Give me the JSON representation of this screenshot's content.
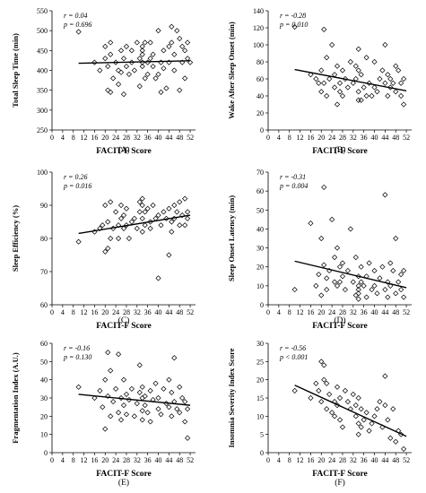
{
  "chart_data": [
    {
      "type": "scatter",
      "panel_label": "(A)",
      "xlabel": "FACIT-F Score",
      "ylabel": "Total Sleep Time (min)",
      "stats": [
        "r = 0.04",
        "p = 0.696"
      ],
      "xlim": [
        0,
        54
      ],
      "ylim": [
        250,
        550
      ],
      "x_ticks": [
        "0",
        "4",
        "8",
        "12",
        "16",
        "20",
        "24",
        "28",
        "32",
        "36",
        "40",
        "44",
        "48",
        "52"
      ],
      "y_ticks": [
        "250",
        "300",
        "350",
        "400",
        "450",
        "500",
        "550"
      ],
      "marker": "open-diamond",
      "trend_line": {
        "x": [
          10,
          52
        ],
        "y": [
          418,
          424
        ]
      },
      "x": [
        10,
        16,
        18,
        20,
        20,
        21,
        21,
        22,
        22,
        22,
        23,
        24,
        25,
        25,
        26,
        26,
        27,
        27,
        28,
        28,
        29,
        30,
        30,
        31,
        32,
        33,
        33,
        34,
        34,
        34,
        34,
        34,
        35,
        35,
        36,
        36,
        37,
        37,
        38,
        38,
        39,
        40,
        40,
        41,
        41,
        42,
        42,
        43,
        44,
        44,
        45,
        45,
        46,
        46,
        47,
        48,
        48,
        49,
        49,
        50,
        50,
        51,
        51,
        52
      ],
      "y": [
        497,
        420,
        400,
        460,
        430,
        410,
        350,
        470,
        440,
        345,
        380,
        420,
        400,
        365,
        450,
        395,
        430,
        340,
        410,
        460,
        390,
        420,
        450,
        400,
        470,
        430,
        360,
        440,
        460,
        450,
        420,
        410,
        470,
        380,
        390,
        420,
        430,
        470,
        440,
        410,
        380,
        500,
        390,
        420,
        345,
        450,
        405,
        355,
        460,
        420,
        470,
        510,
        440,
        400,
        500,
        350,
        480,
        460,
        420,
        450,
        380,
        430,
        470,
        420
      ]
    },
    {
      "type": "scatter",
      "panel_label": "(B)",
      "xlabel": "FACIT-F Score",
      "ylabel": "Wake After Sleep Onset (min)",
      "stats": [
        "r = -0.28",
        "p = 0.010"
      ],
      "xlim": [
        0,
        54
      ],
      "ylim": [
        0,
        140
      ],
      "x_ticks": [
        "0",
        "4",
        "8",
        "12",
        "16",
        "20",
        "24",
        "28",
        "32",
        "36",
        "40",
        "44",
        "48",
        "52"
      ],
      "y_ticks": [
        "0",
        "20",
        "40",
        "60",
        "80",
        "100",
        "120",
        "140"
      ],
      "marker": "open-diamond",
      "trend_line": {
        "x": [
          10,
          52
        ],
        "y": [
          71,
          46
        ]
      },
      "x": [
        10,
        16,
        18,
        19,
        20,
        20,
        21,
        21,
        22,
        22,
        23,
        24,
        25,
        25,
        26,
        26,
        27,
        27,
        28,
        28,
        29,
        30,
        31,
        32,
        33,
        33,
        34,
        34,
        34,
        34,
        35,
        35,
        36,
        37,
        37,
        38,
        39,
        40,
        40,
        41,
        42,
        43,
        44,
        44,
        45,
        45,
        46,
        46,
        47,
        48,
        48,
        49,
        50,
        50,
        51,
        51
      ],
      "y": [
        121,
        65,
        60,
        55,
        70,
        45,
        118,
        55,
        85,
        40,
        60,
        100,
        50,
        65,
        30,
        75,
        55,
        45,
        70,
        40,
        60,
        50,
        80,
        55,
        75,
        60,
        45,
        35,
        95,
        70,
        65,
        35,
        50,
        40,
        85,
        55,
        40,
        80,
        50,
        45,
        60,
        70,
        100,
        55,
        65,
        40,
        50,
        60,
        55,
        45,
        75,
        70,
        40,
        55,
        30,
        60
      ]
    },
    {
      "type": "scatter",
      "panel_label": "(C)",
      "xlabel": "FACIT-F Score",
      "ylabel": "Sleep Efficiency (%)",
      "stats": [
        "r = 0.26",
        "p = 0.016"
      ],
      "xlim": [
        0,
        54
      ],
      "ylim": [
        60,
        100
      ],
      "x_ticks": [
        "0",
        "4",
        "8",
        "12",
        "16",
        "20",
        "24",
        "28",
        "32",
        "36",
        "40",
        "44",
        "48",
        "52"
      ],
      "y_ticks": [
        "60",
        "70",
        "80",
        "90",
        "100"
      ],
      "marker": "open-diamond",
      "trend_line": {
        "x": [
          10,
          52
        ],
        "y": [
          81.5,
          87.0
        ]
      },
      "x": [
        10,
        16,
        18,
        19,
        20,
        20,
        21,
        21,
        22,
        22,
        23,
        24,
        25,
        25,
        26,
        26,
        27,
        27,
        28,
        28,
        29,
        30,
        31,
        32,
        33,
        33,
        34,
        34,
        34,
        34,
        35,
        35,
        36,
        37,
        37,
        38,
        39,
        40,
        40,
        41,
        42,
        43,
        44,
        44,
        45,
        45,
        46,
        46,
        47,
        48,
        48,
        49,
        50,
        50,
        51,
        51
      ],
      "y": [
        79,
        82,
        83,
        84,
        76,
        90,
        77,
        85,
        91,
        80,
        83,
        88,
        84,
        80,
        86,
        90,
        83,
        87,
        84,
        89,
        80,
        85,
        86,
        83,
        91,
        88,
        82,
        92,
        86,
        90,
        84,
        88,
        89,
        85,
        83,
        90,
        86,
        87,
        68,
        84,
        88,
        86,
        75,
        89,
        85,
        82,
        90,
        86,
        88,
        84,
        91,
        87,
        92,
        84,
        88,
        86
      ]
    },
    {
      "type": "scatter",
      "panel_label": "(D)",
      "xlabel": "FACIT-F Score",
      "ylabel": "Sleep Onset Latency (min)",
      "stats": [
        "r = -0.31",
        "p = 0.004"
      ],
      "xlim": [
        0,
        54
      ],
      "ylim": [
        0,
        70
      ],
      "x_ticks": [
        "0",
        "4",
        "8",
        "12",
        "16",
        "20",
        "24",
        "28",
        "32",
        "36",
        "40",
        "44",
        "48",
        "52"
      ],
      "y_ticks": [
        "0",
        "10",
        "20",
        "30",
        "40",
        "50",
        "60",
        "70"
      ],
      "marker": "open-diamond",
      "trend_line": {
        "x": [
          10,
          52
        ],
        "y": [
          23,
          9
        ]
      },
      "x": [
        10,
        16,
        18,
        19,
        20,
        20,
        21,
        21,
        22,
        22,
        23,
        24,
        25,
        25,
        26,
        26,
        27,
        27,
        28,
        28,
        29,
        30,
        31,
        32,
        33,
        33,
        34,
        34,
        34,
        34,
        34,
        35,
        35,
        36,
        37,
        37,
        38,
        39,
        40,
        40,
        41,
        42,
        43,
        44,
        44,
        45,
        45,
        46,
        46,
        47,
        48,
        48,
        49,
        50,
        50,
        51,
        51
      ],
      "y": [
        8,
        43,
        10,
        16,
        35,
        5,
        62,
        21,
        14,
        8,
        18,
        45,
        12,
        25,
        30,
        10,
        20,
        12,
        15,
        22,
        8,
        18,
        40,
        12,
        5,
        25,
        10,
        3,
        8,
        15,
        6,
        20,
        12,
        10,
        4,
        15,
        22,
        8,
        10,
        18,
        6,
        14,
        20,
        58,
        8,
        12,
        4,
        22,
        10,
        18,
        35,
        6,
        12,
        8,
        16,
        4,
        18
      ]
    },
    {
      "type": "scatter",
      "panel_label": "(E)",
      "xlabel": "FACIT-F Score",
      "ylabel": "Fragmentation Index (A.U.)",
      "stats": [
        "r = -0.16",
        "p = 0.130"
      ],
      "xlim": [
        0,
        54
      ],
      "ylim": [
        0,
        60
      ],
      "x_ticks": [
        "0",
        "4",
        "8",
        "12",
        "16",
        "20",
        "24",
        "28",
        "32",
        "36",
        "40",
        "44",
        "48",
        "52"
      ],
      "y_ticks": [
        "0",
        "10",
        "20",
        "30",
        "40",
        "50",
        "60"
      ],
      "marker": "open-diamond",
      "trend_line": {
        "x": [
          10,
          52
        ],
        "y": [
          32,
          26
        ]
      },
      "x": [
        10,
        16,
        18,
        19,
        20,
        20,
        21,
        21,
        22,
        22,
        23,
        24,
        25,
        25,
        26,
        26,
        27,
        27,
        28,
        28,
        29,
        30,
        31,
        32,
        33,
        33,
        34,
        34,
        34,
        34,
        35,
        35,
        36,
        37,
        37,
        38,
        39,
        40,
        40,
        41,
        42,
        43,
        44,
        44,
        45,
        45,
        46,
        46,
        47,
        48,
        48,
        49,
        50,
        50,
        51,
        51
      ],
      "y": [
        36,
        30,
        34,
        25,
        40,
        13,
        55,
        31,
        20,
        45,
        28,
        35,
        22,
        54,
        30,
        18,
        40,
        26,
        32,
        21,
        29,
        35,
        20,
        27,
        48,
        33,
        23,
        30,
        18,
        36,
        26,
        31,
        22,
        34,
        17,
        29,
        38,
        24,
        30,
        21,
        35,
        27,
        40,
        25,
        33,
        20,
        52,
        28,
        24,
        36,
        22,
        30,
        17,
        28,
        8,
        24
      ]
    },
    {
      "type": "scatter",
      "panel_label": "(F)",
      "xlabel": "FACIT-F Score",
      "ylabel": "Insomnia Severity Index Score",
      "stats": [
        "r = -0.56",
        "p < 0.001"
      ],
      "xlim": [
        0,
        54
      ],
      "ylim": [
        0,
        30
      ],
      "x_ticks": [
        "0",
        "4",
        "8",
        "12",
        "16",
        "20",
        "24",
        "28",
        "32",
        "36",
        "40",
        "44",
        "48",
        "52"
      ],
      "y_ticks": [
        "0",
        "5",
        "10",
        "15",
        "20",
        "25",
        "30"
      ],
      "marker": "open-diamond",
      "trend_line": {
        "x": [
          10,
          52
        ],
        "y": [
          18.5,
          4.5
        ]
      },
      "x": [
        10,
        16,
        18,
        19,
        20,
        20,
        21,
        21,
        22,
        22,
        23,
        24,
        25,
        25,
        26,
        26,
        27,
        27,
        28,
        29,
        30,
        31,
        32,
        33,
        33,
        34,
        34,
        34,
        35,
        35,
        36,
        37,
        38,
        39,
        40,
        41,
        42,
        43,
        44,
        44,
        45,
        46,
        47,
        48,
        49,
        50,
        51
      ],
      "y": [
        17,
        15,
        19,
        17,
        25,
        14,
        24,
        20,
        12,
        19,
        16,
        11,
        14,
        10,
        13,
        18,
        15,
        9,
        7,
        17,
        14,
        12,
        16,
        10,
        13,
        5,
        8,
        15,
        7,
        12,
        9,
        11,
        6,
        8,
        10,
        12,
        14,
        7,
        21,
        13,
        9,
        4,
        12,
        3,
        6,
        5,
        1
      ]
    }
  ]
}
